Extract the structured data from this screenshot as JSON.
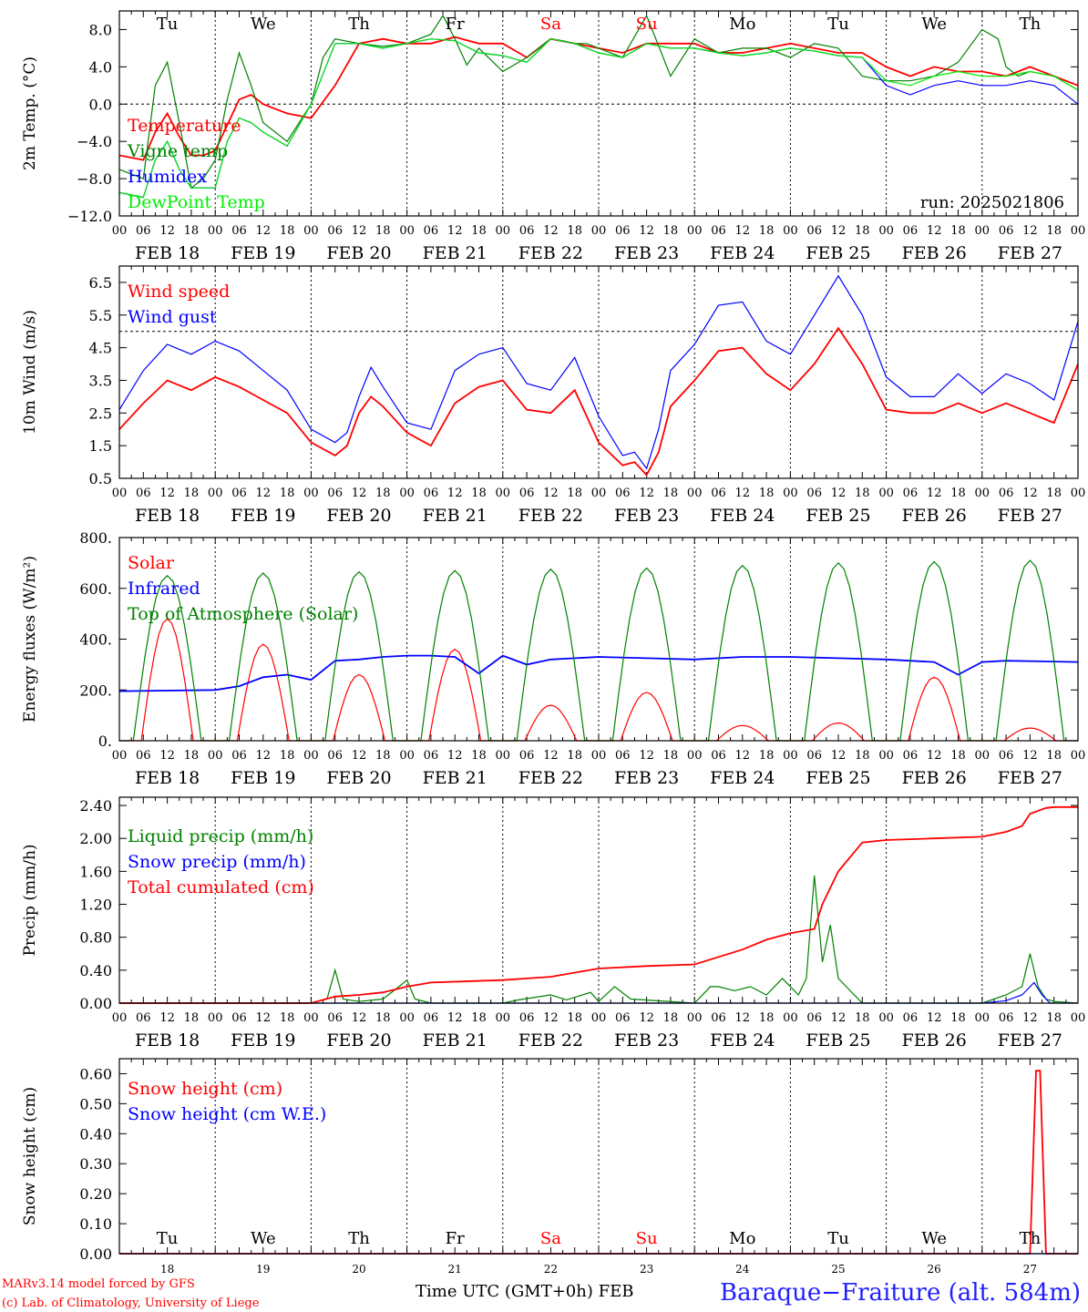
{
  "footer": {
    "model": "MARv3.14 model forced by GFS",
    "lab": "(c) Lab. of Climatology, University of Liege",
    "xlabel": "Time UTC (GMT+0h) FEB",
    "station": "Baraque−Fraiture (alt. 584m)"
  },
  "days": {
    "names": [
      "Tu",
      "We",
      "Th",
      "Fr",
      "Sa",
      "Su",
      "Mo",
      "Tu",
      "We",
      "Th"
    ],
    "weekend": [
      false,
      false,
      false,
      false,
      true,
      true,
      false,
      false,
      false,
      false
    ],
    "dates": [
      "FEB 18",
      "FEB 19",
      "FEB 20",
      "FEB 21",
      "FEB 22",
      "FEB 23",
      "FEB 24",
      "FEB 25",
      "FEB 26",
      "FEB 27"
    ],
    "numbers": [
      "18",
      "19",
      "20",
      "21",
      "22",
      "23",
      "24",
      "25",
      "26",
      "27"
    ],
    "hour_labels": [
      "00",
      "06",
      "12",
      "18"
    ],
    "end_label": "00"
  },
  "colors": {
    "red": "#ff0000",
    "green": "#008000",
    "blue": "#0000ff",
    "lime": "#00ee00",
    "weekend": "#ff0000",
    "title": "#2020ff"
  },
  "chart_data": [
    {
      "type": "line",
      "ylabel": "2m Temp. (°C)",
      "ylim": [
        -12,
        10
      ],
      "yticks": [
        8,
        4,
        0,
        -4,
        -8,
        -12
      ],
      "ytick_labels": [
        "8.0",
        "4.0",
        "0.0",
        "−4.0",
        "−8.0",
        "−12.0"
      ],
      "refline": 0,
      "annotation": "run: 2025021806",
      "x_unit": "hours since FEB 18 00 UTC",
      "series": [
        {
          "name": "Temperature",
          "color": "#ff0000",
          "x": [
            0,
            6,
            9,
            12,
            15,
            18,
            21,
            24,
            30,
            33,
            36,
            42,
            48,
            54,
            60,
            66,
            72,
            78,
            84,
            90,
            96,
            102,
            108,
            114,
            120,
            126,
            132,
            138,
            144,
            150,
            156,
            162,
            168,
            174,
            180,
            186,
            192,
            198,
            204,
            210,
            216,
            222,
            228,
            234,
            240
          ],
          "y": [
            -5.5,
            -6,
            -3,
            -1,
            -3.5,
            -5.5,
            -5.5,
            -5,
            0.5,
            1,
            0,
            -1,
            -1.5,
            2,
            6.5,
            7,
            6.5,
            6.5,
            7.2,
            6.5,
            6.5,
            5,
            7,
            6.5,
            6,
            5.5,
            6.5,
            6.5,
            6.5,
            5.5,
            5.5,
            6,
            6.5,
            6,
            5.5,
            5.5,
            4,
            3,
            4,
            3.5,
            3.5,
            3,
            4,
            3,
            2
          ]
        },
        {
          "name": "Vigne temp",
          "color": "#008000",
          "x": [
            0,
            6,
            9,
            12,
            15,
            18,
            21,
            24,
            27,
            30,
            33,
            36,
            42,
            48,
            51,
            54,
            60,
            66,
            72,
            78,
            81,
            84,
            87,
            90,
            96,
            102,
            108,
            111,
            114,
            117,
            120,
            126,
            132,
            138,
            144,
            150,
            156,
            162,
            168,
            174,
            180,
            186,
            192,
            198,
            204,
            210,
            216,
            220,
            222,
            225,
            228,
            234,
            240
          ],
          "y": [
            -7,
            -8,
            2,
            4.5,
            -2,
            -9,
            -8,
            -6,
            0.5,
            5.5,
            2,
            -2,
            -4,
            0,
            5,
            7,
            6.5,
            6.2,
            6.5,
            7.5,
            9.5,
            7,
            4.2,
            6,
            3.5,
            5,
            7,
            6.8,
            6.5,
            6.5,
            6,
            5,
            9.5,
            3,
            7,
            5.5,
            6,
            6,
            5,
            6.5,
            6,
            3,
            2.5,
            2.5,
            3,
            4.5,
            8,
            7,
            4,
            3,
            3.5,
            3,
            1.5
          ]
        },
        {
          "name": "Humidex",
          "color": "#0000ff",
          "x": [
            0,
            6,
            9,
            12,
            15,
            18,
            21,
            24,
            27,
            30,
            33,
            36,
            42,
            48,
            54,
            60,
            66,
            72,
            78,
            84,
            90,
            96,
            102,
            108,
            114,
            120,
            126,
            132,
            138,
            144,
            150,
            156,
            162,
            168,
            174,
            180,
            186,
            192,
            198,
            204,
            210,
            216,
            222,
            228,
            234,
            240
          ],
          "y": [
            -9.5,
            -10,
            -6,
            -4,
            -7,
            -9,
            -9,
            -9,
            -4,
            -1.5,
            -2,
            -3,
            -4.5,
            0,
            6.5,
            6.5,
            6,
            6.5,
            7,
            6.8,
            5.5,
            5.2,
            4.5,
            7,
            6.5,
            5.5,
            5,
            6.5,
            6,
            6,
            5.5,
            5.2,
            5.5,
            6,
            5.7,
            5.2,
            5,
            2,
            1,
            2,
            2.5,
            2,
            2,
            2.5,
            2,
            0
          ]
        },
        {
          "name": "DewPoint Temp",
          "color": "#00ee00",
          "x": [
            0,
            6,
            9,
            12,
            15,
            18,
            21,
            24,
            27,
            30,
            33,
            36,
            42,
            48,
            54,
            60,
            66,
            72,
            78,
            84,
            90,
            96,
            102,
            108,
            114,
            120,
            126,
            132,
            138,
            144,
            150,
            156,
            162,
            168,
            174,
            180,
            186,
            192,
            198,
            204,
            210,
            216,
            222,
            228,
            234,
            240
          ],
          "y": [
            -9.5,
            -10,
            -6,
            -4,
            -7,
            -9,
            -9,
            -9,
            -4,
            -1.5,
            -2,
            -3,
            -4.5,
            0,
            6.5,
            6.5,
            6,
            6.5,
            7,
            6.8,
            5.5,
            5.2,
            4.5,
            7,
            6.5,
            5.5,
            5,
            6.5,
            6,
            6,
            5.5,
            5.2,
            5.5,
            6,
            5.7,
            5.2,
            5,
            2.5,
            2,
            3,
            3.5,
            3,
            3,
            3.5,
            3,
            1.5
          ]
        }
      ]
    },
    {
      "type": "line",
      "ylabel": "10m Wind (m/s)",
      "ylim": [
        0.5,
        7
      ],
      "yticks": [
        6.5,
        5.5,
        4.5,
        3.5,
        2.5,
        1.5,
        0.5
      ],
      "ytick_labels": [
        "6.5",
        "5.5",
        "4.5",
        "3.5",
        "2.5",
        "1.5",
        "0.5"
      ],
      "refline": 5,
      "x_unit": "hours since FEB 18 00 UTC",
      "series": [
        {
          "name": "Wind speed",
          "color": "#ff0000",
          "x": [
            0,
            6,
            12,
            18,
            24,
            30,
            36,
            42,
            48,
            54,
            57,
            60,
            63,
            66,
            72,
            78,
            84,
            90,
            96,
            102,
            108,
            114,
            120,
            126,
            129,
            132,
            135,
            138,
            144,
            150,
            156,
            162,
            168,
            174,
            180,
            186,
            192,
            198,
            204,
            210,
            216,
            222,
            228,
            234,
            240
          ],
          "y": [
            2,
            2.8,
            3.5,
            3.2,
            3.6,
            3.3,
            2.9,
            2.5,
            1.6,
            1.2,
            1.5,
            2.5,
            3,
            2.7,
            1.9,
            1.5,
            2.8,
            3.3,
            3.5,
            2.6,
            2.5,
            3.2,
            1.6,
            0.9,
            1,
            0.6,
            1.3,
            2.7,
            3.5,
            4.4,
            4.5,
            3.7,
            3.2,
            4,
            5.1,
            4,
            2.6,
            2.5,
            2.5,
            2.8,
            2.5,
            2.8,
            2.5,
            2.2,
            4
          ]
        },
        {
          "name": "Wind gust",
          "color": "#0000ff",
          "x": [
            0,
            6,
            12,
            18,
            24,
            30,
            36,
            42,
            48,
            54,
            57,
            60,
            63,
            66,
            72,
            78,
            84,
            90,
            96,
            102,
            108,
            114,
            120,
            126,
            129,
            132,
            135,
            138,
            144,
            150,
            156,
            162,
            168,
            174,
            180,
            186,
            192,
            198,
            204,
            210,
            216,
            222,
            228,
            234,
            240
          ],
          "y": [
            2.6,
            3.8,
            4.6,
            4.3,
            4.7,
            4.4,
            3.8,
            3.2,
            2,
            1.6,
            1.9,
            3,
            3.9,
            3.3,
            2.2,
            2,
            3.8,
            4.3,
            4.5,
            3.4,
            3.2,
            4.2,
            2.4,
            1.2,
            1.3,
            0.8,
            2,
            3.8,
            4.6,
            5.8,
            5.9,
            4.7,
            4.3,
            5.5,
            6.7,
            5.5,
            3.6,
            3,
            3,
            3.7,
            3.1,
            3.7,
            3.4,
            2.9,
            5.3
          ]
        }
      ]
    },
    {
      "type": "line",
      "ylabel": "Energy fluxes (W/m²)",
      "ylim": [
        0,
        800
      ],
      "yticks": [
        800,
        600,
        400,
        200,
        0
      ],
      "ytick_labels": [
        "800.",
        "600.",
        "400.",
        "200.",
        "0."
      ],
      "x_unit": "hours since FEB 18 00 UTC",
      "series": [
        {
          "name": "Solar",
          "color": "#ff0000",
          "peaks": [
            480,
            380,
            260,
            360,
            140,
            190,
            60,
            70,
            250,
            50
          ]
        },
        {
          "name": "Infrared",
          "color": "#0000ff",
          "x": [
            0,
            24,
            30,
            36,
            42,
            48,
            54,
            60,
            66,
            72,
            78,
            84,
            90,
            96,
            102,
            108,
            120,
            132,
            144,
            156,
            168,
            180,
            192,
            204,
            210,
            216,
            222,
            240
          ],
          "y": [
            195,
            200,
            215,
            250,
            260,
            240,
            315,
            320,
            330,
            335,
            335,
            330,
            265,
            335,
            300,
            320,
            330,
            325,
            320,
            330,
            330,
            325,
            320,
            310,
            260,
            310,
            315,
            310
          ]
        },
        {
          "name": "Top of Atmosphere (Solar)",
          "color": "#008000",
          "peaks": [
            650,
            660,
            665,
            670,
            675,
            680,
            690,
            700,
            705,
            710
          ]
        }
      ]
    },
    {
      "type": "line",
      "ylabel": "Precip (mm/h)",
      "ylim": [
        0,
        2.5
      ],
      "yticks": [
        2.4,
        2.0,
        1.6,
        1.2,
        0.8,
        0.4,
        0.0
      ],
      "ytick_labels": [
        "2.40",
        "2.00",
        "1.60",
        "1.20",
        "0.80",
        "0.40",
        "0.00"
      ],
      "x_unit": "hours since FEB 18 00 UTC",
      "series": [
        {
          "name": "Liquid precip (mm/h)",
          "color": "#008000",
          "x": [
            0,
            48,
            52,
            54,
            56,
            60,
            66,
            70,
            72,
            74,
            78,
            96,
            100,
            108,
            112,
            118,
            120,
            124,
            128,
            144,
            148,
            150,
            154,
            158,
            162,
            166,
            168,
            170,
            172,
            174,
            176,
            178,
            180,
            186,
            200,
            216,
            222,
            226,
            228,
            230,
            232,
            234,
            240
          ],
          "y": [
            0,
            0,
            0.05,
            0.4,
            0.05,
            0.02,
            0.05,
            0.2,
            0.28,
            0.05,
            0,
            0,
            0.04,
            0.1,
            0.04,
            0.13,
            0.02,
            0.2,
            0.05,
            0,
            0.2,
            0.2,
            0.15,
            0.2,
            0.1,
            0.3,
            0.2,
            0.1,
            0.3,
            1.55,
            0.5,
            0.95,
            0.3,
            0,
            0,
            0,
            0.1,
            0.2,
            0.6,
            0.2,
            0.05,
            0.02,
            0
          ]
        },
        {
          "name": "Snow precip (mm/h)",
          "color": "#0000ff",
          "x": [
            0,
            216,
            222,
            226,
            229,
            231,
            233,
            240
          ],
          "y": [
            0,
            0,
            0.03,
            0.1,
            0.25,
            0.1,
            0,
            0
          ]
        },
        {
          "name": "Total cumulated (cm)",
          "color": "#ff0000",
          "x": [
            0,
            48,
            54,
            60,
            66,
            72,
            78,
            96,
            108,
            120,
            132,
            144,
            156,
            162,
            168,
            174,
            176,
            180,
            186,
            192,
            204,
            216,
            222,
            226,
            228,
            232,
            234,
            240
          ],
          "y": [
            0,
            0,
            0.08,
            0.1,
            0.13,
            0.2,
            0.25,
            0.28,
            0.32,
            0.42,
            0.45,
            0.47,
            0.65,
            0.77,
            0.85,
            0.9,
            1.2,
            1.6,
            1.95,
            1.98,
            2,
            2.02,
            2.08,
            2.15,
            2.3,
            2.37,
            2.38,
            2.38
          ]
        }
      ]
    },
    {
      "type": "line",
      "ylabel": "Snow height (cm)",
      "ylim": [
        0,
        0.65
      ],
      "yticks": [
        0.6,
        0.5,
        0.4,
        0.3,
        0.2,
        0.1,
        0.0
      ],
      "ytick_labels": [
        "0.60",
        "0.50",
        "0.40",
        "0.30",
        "0.20",
        "0.10",
        "0.00"
      ],
      "x_unit": "hours since FEB 18 00 UTC",
      "series": [
        {
          "name": "Snow height (cm)",
          "color": "#ff0000",
          "x": [
            0,
            228,
            229.5,
            230.5,
            232,
            240
          ],
          "y": [
            0,
            0,
            0.61,
            0.61,
            0,
            0
          ]
        },
        {
          "name": "Snow height (cm W.E.)",
          "color": "#0000ff",
          "x": [
            0,
            240
          ],
          "y": [
            0,
            0
          ]
        }
      ]
    }
  ]
}
